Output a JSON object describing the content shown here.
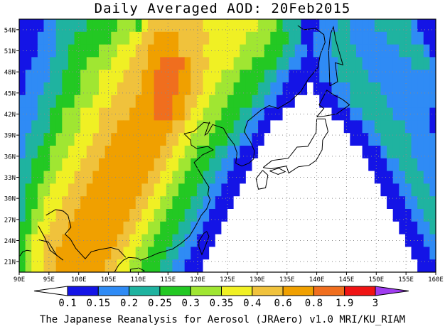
{
  "title": "Daily Averaged AOD: 20Feb2015",
  "footer": "The Japanese Reanalysis for Aerosol (JRAero) v1.0 MRI/KU_RIAM",
  "axes": {
    "lat_labels": [
      "54N",
      "51N",
      "48N",
      "45N",
      "42N",
      "39N",
      "36N",
      "33N",
      "30N",
      "27N",
      "24N",
      "21N"
    ],
    "lat_values": [
      54,
      51,
      48,
      45,
      42,
      39,
      36,
      33,
      30,
      27,
      24,
      21
    ],
    "lon_labels": [
      "90E",
      "95E",
      "100E",
      "105E",
      "110E",
      "115E",
      "120E",
      "125E",
      "130E",
      "135E",
      "140E",
      "145E",
      "150E",
      "155E",
      "160E"
    ],
    "lon_values": [
      90,
      95,
      100,
      105,
      110,
      115,
      120,
      125,
      130,
      135,
      140,
      145,
      150,
      155,
      160
    ],
    "lon_range": [
      90,
      160
    ],
    "lat_range": [
      19.5,
      55.5
    ]
  },
  "colorbar": {
    "labels": [
      "0.1",
      "0.15",
      "0.2",
      "0.25",
      "0.3",
      "0.35",
      "0.4",
      "0.6",
      "0.8",
      "1.9",
      "3"
    ],
    "colors": [
      "#ffffff",
      "#1414e6",
      "#2f8bf5",
      "#1fb3a0",
      "#23c823",
      "#a0e632",
      "#f0f024",
      "#f0c23c",
      "#f0a000",
      "#f06e1e",
      "#f01414",
      "#a03cf0"
    ]
  },
  "field": {
    "rows": [
      "11112233333444445554677777777766666666655543331112223322223333332111",
      "11122233344444455566778888777776666665555444331122233322222233332211",
      "11122233444445556667788888777766666655554443322122233332222222333321",
      "11222333444555566677788999987776666555444433221112223333222222223332",
      "12222334445556666777889999887766655544443322111112223333322222222222",
      "12223334445556667777889999887766555444433221111011122233333222222222",
      "22233344455566677778889998877665554444332211100001112233333322222222",
      "22233445556667777788889998876655544433221110000000011122333332222221",
      "22333445556667778888888887766555444332211000000000000111223333322221",
      "23334455566677788888888877665554443322110000000000000011122333332222",
      "23344555666777888888888776655444332211100000000000000000111233332222",
      "33444556667778888888887766554443322111000000000000000000011122333222",
      "33445566677788888888877665544433221110000000000000000000001112233322",
      "34455666777888888888776655444332211100000000000000000000000111223332",
      "34456667778888888887766554443322111000000000000000000000000011122333",
      "34556677788888888877665544433221110000000000000000000000000001112233",
      "44566777888888888776655444332211100000000000000000000000000000111223",
      "45667778888888887766554443322111000000000000000000000000000000011122",
      "45667788888888877665544433221110000000000000000000000000000000001112",
      "45667788888888776655444332211100000000000000000000000000000000000111"
    ]
  }
}
